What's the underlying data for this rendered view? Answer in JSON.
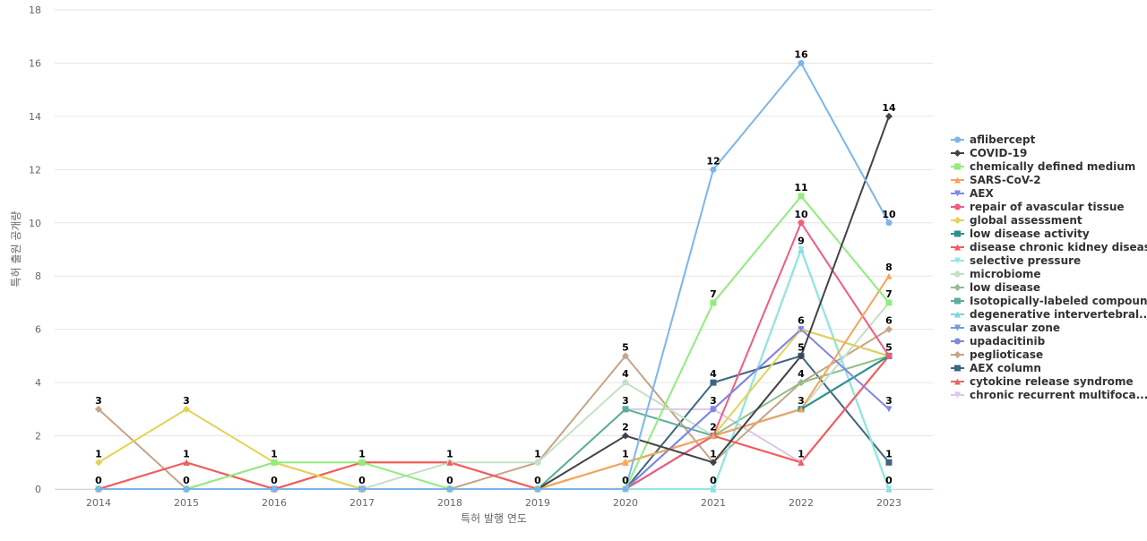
{
  "chart_data": {
    "type": "line",
    "title": "",
    "xlabel": "특허 발행 연도",
    "ylabel": "특허 출원 공개량",
    "ylim": [
      0,
      18
    ],
    "y_ticks": [
      0,
      2,
      4,
      6,
      8,
      10,
      12,
      14,
      16,
      18
    ],
    "categories": [
      "2014",
      "2015",
      "2016",
      "2017",
      "2018",
      "2019",
      "2020",
      "2021",
      "2022",
      "2023"
    ],
    "grid": true,
    "legend_position": "right",
    "series": [
      {
        "name": "aflibercept",
        "color": "#7cb5ec",
        "marker": "circle",
        "values": [
          0,
          0,
          0,
          0,
          0,
          0,
          0,
          12,
          16,
          10
        ]
      },
      {
        "name": "COVID-19",
        "color": "#434348",
        "marker": "diamond",
        "values": [
          0,
          0,
          0,
          0,
          0,
          0,
          2,
          1,
          5,
          14
        ]
      },
      {
        "name": "chemically defined medium",
        "color": "#90ed7d",
        "marker": "square",
        "values": [
          0,
          0,
          1,
          1,
          0,
          0,
          0,
          7,
          11,
          7
        ]
      },
      {
        "name": "SARS-CoV-2",
        "color": "#f7a35c",
        "marker": "triangle",
        "values": [
          0,
          0,
          0,
          0,
          0,
          0,
          1,
          2,
          3,
          8
        ]
      },
      {
        "name": "AEX",
        "color": "#8085e9",
        "marker": "triangle-down",
        "values": [
          0,
          0,
          0,
          0,
          0,
          0,
          0,
          3,
          6,
          3
        ]
      },
      {
        "name": "repair of avascular tissue",
        "color": "#f15c80",
        "marker": "circle",
        "values": [
          0,
          0,
          0,
          0,
          0,
          0,
          0,
          2,
          10,
          5
        ]
      },
      {
        "name": "global assessment",
        "color": "#e4d354",
        "marker": "diamond",
        "values": [
          1,
          3,
          1,
          0,
          0,
          0,
          1,
          2,
          6,
          5
        ]
      },
      {
        "name": "low disease activity",
        "color": "#2b908f",
        "marker": "square",
        "values": [
          0,
          0,
          0,
          0,
          0,
          0,
          0,
          2,
          3,
          5
        ]
      },
      {
        "name": "disease chronic kidney disease",
        "color": "#f45b5b",
        "marker": "triangle",
        "values": [
          0,
          1,
          0,
          1,
          1,
          0,
          0,
          2,
          1,
          5
        ]
      },
      {
        "name": "selective pressure",
        "color": "#91e8e1",
        "marker": "triangle-down",
        "values": [
          0,
          0,
          0,
          0,
          0,
          0,
          0,
          0,
          9,
          0
        ]
      },
      {
        "name": "microbiome",
        "color": "#c5dfc8",
        "marker": "circle",
        "values": [
          0,
          0,
          0,
          0,
          1,
          1,
          4,
          2,
          3,
          7
        ]
      },
      {
        "name": "low disease",
        "color": "#8fbf8a",
        "marker": "diamond",
        "values": [
          0,
          0,
          0,
          0,
          0,
          0,
          1,
          2,
          4,
          5
        ]
      },
      {
        "name": "Isotopically-labeled compound",
        "color": "#5cae9a",
        "marker": "square",
        "values": [
          0,
          0,
          0,
          0,
          0,
          0,
          3,
          2,
          3,
          5
        ]
      },
      {
        "name": "degenerative intervertebral...",
        "color": "#7dd3e8",
        "marker": "triangle",
        "values": [
          0,
          0,
          0,
          0,
          0,
          0,
          0,
          0,
          9,
          0
        ]
      },
      {
        "name": "avascular zone",
        "color": "#6c9fd6",
        "marker": "triangle-down",
        "values": [
          0,
          0,
          0,
          0,
          0,
          0,
          0,
          0,
          9,
          0
        ]
      },
      {
        "name": "upadacitinib",
        "color": "#7f8ad8",
        "marker": "circle",
        "values": [
          0,
          0,
          0,
          0,
          0,
          0,
          0,
          3,
          6,
          5
        ]
      },
      {
        "name": "peglioticase",
        "color": "#c8a386",
        "marker": "diamond",
        "values": [
          3,
          0,
          1,
          0,
          0,
          1,
          5,
          1,
          4,
          6
        ]
      },
      {
        "name": "AEX column",
        "color": "#3f6580",
        "marker": "square",
        "values": [
          0,
          0,
          0,
          0,
          0,
          0,
          0,
          4,
          5,
          1
        ]
      },
      {
        "name": "cytokine release syndrome",
        "color": "#ee6464",
        "marker": "triangle",
        "values": [
          0,
          1,
          0,
          1,
          1,
          0,
          1,
          2,
          1,
          5
        ]
      },
      {
        "name": "chronic recurrent multifoca...",
        "color": "#ddc6e6",
        "marker": "triangle-down",
        "values": [
          0,
          0,
          0,
          0,
          0,
          0,
          3,
          3,
          1,
          5
        ]
      }
    ],
    "data_labels": [
      {
        "x": "2014",
        "y": 3,
        "text": "3"
      },
      {
        "x": "2014",
        "y": 1,
        "text": "1"
      },
      {
        "x": "2014",
        "y": 0,
        "text": "0"
      },
      {
        "x": "2015",
        "y": 3,
        "text": "3"
      },
      {
        "x": "2015",
        "y": 1,
        "text": "1"
      },
      {
        "x": "2015",
        "y": 0,
        "text": "0"
      },
      {
        "x": "2016",
        "y": 1,
        "text": "1"
      },
      {
        "x": "2016",
        "y": 0,
        "text": "0"
      },
      {
        "x": "2017",
        "y": 1,
        "text": "1"
      },
      {
        "x": "2017",
        "y": 0,
        "text": "0"
      },
      {
        "x": "2018",
        "y": 1,
        "text": "1"
      },
      {
        "x": "2018",
        "y": 0,
        "text": "0"
      },
      {
        "x": "2019",
        "y": 1,
        "text": "1"
      },
      {
        "x": "2019",
        "y": 0,
        "text": "0"
      },
      {
        "x": "2020",
        "y": 5,
        "text": "5"
      },
      {
        "x": "2020",
        "y": 4,
        "text": "4"
      },
      {
        "x": "2020",
        "y": 3,
        "text": "3"
      },
      {
        "x": "2020",
        "y": 2,
        "text": "2"
      },
      {
        "x": "2020",
        "y": 1,
        "text": "1"
      },
      {
        "x": "2020",
        "y": 0,
        "text": "0"
      },
      {
        "x": "2021",
        "y": 12,
        "text": "12"
      },
      {
        "x": "2021",
        "y": 7,
        "text": "7"
      },
      {
        "x": "2021",
        "y": 4,
        "text": "4"
      },
      {
        "x": "2021",
        "y": 3,
        "text": "3"
      },
      {
        "x": "2021",
        "y": 2,
        "text": "2"
      },
      {
        "x": "2021",
        "y": 1,
        "text": "1"
      },
      {
        "x": "2021",
        "y": 0,
        "text": "0"
      },
      {
        "x": "2022",
        "y": 16,
        "text": "16"
      },
      {
        "x": "2022",
        "y": 11,
        "text": "11"
      },
      {
        "x": "2022",
        "y": 10,
        "text": "10"
      },
      {
        "x": "2022",
        "y": 9,
        "text": "9"
      },
      {
        "x": "2022",
        "y": 6,
        "text": "6"
      },
      {
        "x": "2022",
        "y": 5,
        "text": "5"
      },
      {
        "x": "2022",
        "y": 4,
        "text": "4"
      },
      {
        "x": "2022",
        "y": 3,
        "text": "3"
      },
      {
        "x": "2022",
        "y": 1,
        "text": "1"
      },
      {
        "x": "2023",
        "y": 14,
        "text": "14"
      },
      {
        "x": "2023",
        "y": 10,
        "text": "10"
      },
      {
        "x": "2023",
        "y": 8,
        "text": "8"
      },
      {
        "x": "2023",
        "y": 7,
        "text": "7"
      },
      {
        "x": "2023",
        "y": 6,
        "text": "6"
      },
      {
        "x": "2023",
        "y": 5,
        "text": "5"
      },
      {
        "x": "2023",
        "y": 3,
        "text": "3"
      },
      {
        "x": "2023",
        "y": 1,
        "text": "1"
      },
      {
        "x": "2023",
        "y": 0,
        "text": "0"
      }
    ]
  }
}
